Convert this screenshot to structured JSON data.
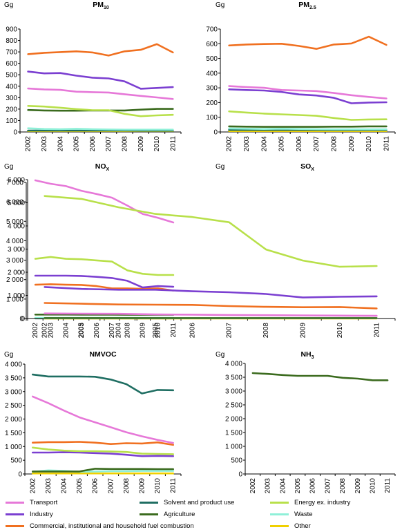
{
  "colors": {
    "Transport": "#e678d8",
    "Industry": "#7b3fd1",
    "Commercial, institutional and household fuel combustion": "#f07020",
    "Solvent and product use": "#1f6e62",
    "Agriculture": "#3b6b1e",
    "Other": "#f0d000",
    "Energy ex. industry": "#b8e04a",
    "Waste": "#8ff0d8"
  },
  "legend": [
    "Transport",
    "Solvent and product use",
    "Energy ex. industry",
    "Industry",
    "Agriculture",
    "Waste",
    "Commercial, institutional and household fuel combustion",
    "Other"
  ],
  "chart_data": [
    {
      "type": "line",
      "title": "PM",
      "title_sub": "10",
      "ylabel": "Gg",
      "ylim": [
        0,
        900
      ],
      "ytick_step": 100,
      "yticks": [
        "0",
        "100",
        "200",
        "300",
        "400",
        "500",
        "600",
        "700",
        "800",
        "900"
      ],
      "categories": [
        "2002",
        "2003",
        "2004",
        "2005",
        "2006",
        "2007",
        "2008",
        "2009",
        "2010",
        "2011"
      ],
      "series": [
        {
          "name": "Transport",
          "values": [
            380,
            372,
            368,
            352,
            348,
            345,
            330,
            315,
            302,
            288
          ]
        },
        {
          "name": "Industry",
          "values": [
            528,
            512,
            515,
            492,
            475,
            468,
            442,
            378,
            385,
            392
          ]
        },
        {
          "name": "Commercial, institutional and household fuel combustion",
          "values": [
            680,
            692,
            698,
            705,
            695,
            668,
            705,
            718,
            768,
            695
          ]
        },
        {
          "name": "Energy ex. industry",
          "values": [
            228,
            222,
            212,
            200,
            190,
            190,
            158,
            138,
            145,
            150
          ]
        },
        {
          "name": "Agriculture",
          "values": [
            192,
            188,
            186,
            186,
            188,
            188,
            188,
            195,
            202,
            202
          ]
        },
        {
          "name": "Waste",
          "values": [
            32,
            26,
            24,
            28,
            24,
            22,
            20,
            20,
            20,
            20
          ]
        },
        {
          "name": "Solvent and product use",
          "values": [
            12,
            12,
            12,
            12,
            12,
            12,
            12,
            11,
            11,
            11
          ]
        },
        {
          "name": "Other",
          "values": [
            8,
            8,
            8,
            8,
            8,
            8,
            8,
            8,
            8,
            8
          ]
        }
      ]
    },
    {
      "type": "line",
      "title": "PM",
      "title_sub": "2.5",
      "ylabel": "Gg",
      "ylim": [
        0,
        700
      ],
      "ytick_step": 100,
      "yticks": [
        "0",
        "100",
        "200",
        "300",
        "400",
        "500",
        "600",
        "700"
      ],
      "categories": [
        "2002",
        "2003",
        "2004",
        "2005",
        "2006",
        "2007",
        "2008",
        "2009",
        "2010",
        "2011"
      ],
      "series": [
        {
          "name": "Transport",
          "values": [
            312,
            305,
            300,
            285,
            282,
            278,
            265,
            250,
            238,
            228
          ]
        },
        {
          "name": "Industry",
          "values": [
            290,
            285,
            282,
            272,
            255,
            248,
            232,
            195,
            200,
            202
          ]
        },
        {
          "name": "Commercial, institutional and household fuel combustion",
          "values": [
            588,
            595,
            598,
            600,
            585,
            565,
            595,
            602,
            648,
            592
          ]
        },
        {
          "name": "Energy ex. industry",
          "values": [
            140,
            132,
            125,
            120,
            115,
            110,
            95,
            82,
            85,
            86
          ]
        },
        {
          "name": "Agriculture",
          "values": [
            38,
            36,
            35,
            35,
            35,
            35,
            36,
            36,
            38,
            38
          ]
        },
        {
          "name": "Waste",
          "values": [
            24,
            22,
            20,
            22,
            20,
            19,
            18,
            18,
            18,
            18
          ]
        },
        {
          "name": "Solvent and product use",
          "values": [
            14,
            14,
            14,
            14,
            14,
            14,
            13,
            13,
            13,
            13
          ]
        },
        {
          "name": "Other",
          "values": [
            6,
            6,
            6,
            6,
            6,
            6,
            6,
            6,
            6,
            6
          ]
        }
      ]
    },
    {
      "type": "line",
      "title": "NO",
      "title_sub": "X",
      "ylabel": "Gg",
      "ylim": [
        0,
        6000
      ],
      "ytick_step": 1000,
      "yticks": [
        "0",
        "1 000",
        "2 000",
        "3 000",
        "4 000",
        "5 000",
        "6 000"
      ],
      "categories": [
        "2002",
        "2003",
        "2004",
        "2005",
        "2006",
        "2007",
        "2008",
        "2009",
        "2010",
        "2011"
      ],
      "series": [
        {
          "name": "Transport",
          "values": [
            5970,
            5820,
            5720,
            5520,
            5380,
            5220,
            4880,
            4520,
            4350,
            4150
          ]
        },
        {
          "name": "Energy ex. industry",
          "values": [
            2580,
            2660,
            2580,
            2560,
            2510,
            2460,
            2080,
            1930,
            1880,
            1880
          ]
        },
        {
          "name": "Industry",
          "values": [
            1850,
            1850,
            1850,
            1840,
            1800,
            1750,
            1630,
            1340,
            1400,
            1370
          ]
        },
        {
          "name": "Commercial, institutional and household fuel combustion",
          "values": [
            1460,
            1480,
            1460,
            1450,
            1400,
            1300,
            1300,
            1280,
            1300,
            1210
          ]
        },
        {
          "name": "Agriculture",
          "values": [
            170,
            170,
            170,
            165,
            165,
            165,
            160,
            160,
            160,
            160
          ]
        },
        {
          "name": "Waste",
          "values": [
            30,
            30,
            30,
            30,
            30,
            30,
            30,
            30,
            30,
            30
          ]
        },
        {
          "name": "Other",
          "values": [
            20,
            20,
            20,
            20,
            20,
            20,
            20,
            20,
            20,
            20
          ]
        },
        {
          "name": "Solvent and product use",
          "values": [
            5,
            5,
            5,
            5,
            5,
            5,
            5,
            5,
            5,
            5
          ]
        }
      ]
    },
    {
      "type": "line",
      "title": "SO",
      "title_sub": "X",
      "ylabel": "Gg",
      "ylim": [
        0,
        7000
      ],
      "ytick_step": 1000,
      "yticks": [
        "0",
        "1 000",
        "2 000",
        "3 000",
        "4 000",
        "5 000",
        "6 000",
        "7 000"
      ],
      "categories": [
        "2002",
        "2003",
        "2004",
        "2005",
        "2006",
        "2007",
        "2008",
        "2009",
        "2010",
        "2011"
      ],
      "series": [
        {
          "name": "Energy ex. industry",
          "values": [
            6300,
            6150,
            5720,
            5380,
            5220,
            4950,
            3550,
            2980,
            2660,
            2700
          ]
        },
        {
          "name": "Industry",
          "values": [
            1620,
            1520,
            1480,
            1480,
            1400,
            1350,
            1260,
            1080,
            1120,
            1140
          ]
        },
        {
          "name": "Commercial, institutional and household fuel combustion",
          "values": [
            800,
            760,
            720,
            710,
            700,
            640,
            600,
            580,
            590,
            520
          ]
        },
        {
          "name": "Transport",
          "values": [
            260,
            250,
            240,
            210,
            200,
            180,
            170,
            160,
            150,
            140
          ]
        },
        {
          "name": "Agriculture",
          "values": [
            20,
            20,
            20,
            20,
            20,
            20,
            20,
            20,
            20,
            20
          ]
        },
        {
          "name": "Waste",
          "values": [
            10,
            10,
            10,
            10,
            10,
            10,
            10,
            10,
            10,
            10
          ]
        },
        {
          "name": "Other",
          "values": [
            5,
            5,
            5,
            5,
            5,
            5,
            5,
            5,
            5,
            5
          ]
        }
      ]
    },
    {
      "type": "line",
      "title": "NMVOC",
      "title_sub": "",
      "ylabel": "Gg",
      "ylim": [
        0,
        4000
      ],
      "ytick_step": 500,
      "yticks": [
        "0",
        "500",
        "1 000",
        "1 500",
        "2 000",
        "2 500",
        "3 000",
        "3 500",
        "4 000"
      ],
      "categories": [
        "2002",
        "2003",
        "2004",
        "2005",
        "2006",
        "2007",
        "2008",
        "2009",
        "2010",
        "2011"
      ],
      "series": [
        {
          "name": "Solvent and product use",
          "values": [
            3620,
            3550,
            3550,
            3550,
            3540,
            3440,
            3270,
            2930,
            3060,
            3050
          ]
        },
        {
          "name": "Transport",
          "values": [
            2820,
            2580,
            2310,
            2060,
            1880,
            1700,
            1520,
            1370,
            1240,
            1130
          ]
        },
        {
          "name": "Commercial, institutional and household fuel combustion",
          "values": [
            1140,
            1160,
            1160,
            1170,
            1140,
            1090,
            1120,
            1110,
            1150,
            1060
          ]
        },
        {
          "name": "Energy ex. industry",
          "values": [
            960,
            890,
            850,
            830,
            830,
            820,
            800,
            740,
            730,
            720
          ]
        },
        {
          "name": "Industry",
          "values": [
            780,
            780,
            790,
            780,
            760,
            740,
            700,
            650,
            660,
            650
          ]
        },
        {
          "name": "Agriculture",
          "values": [
            90,
            90,
            90,
            90,
            190,
            180,
            180,
            180,
            175,
            175
          ]
        },
        {
          "name": "Waste",
          "values": [
            80,
            130,
            110,
            80,
            90,
            100,
            100,
            110,
            110,
            110
          ]
        },
        {
          "name": "Other",
          "values": [
            20,
            20,
            20,
            20,
            20,
            20,
            20,
            20,
            20,
            20
          ]
        }
      ]
    },
    {
      "type": "line",
      "title": "NH",
      "title_sub": "3",
      "ylabel": "Gg",
      "ylim": [
        0,
        4000
      ],
      "ytick_step": 500,
      "yticks": [
        "0",
        "500",
        "1 000",
        "1 500",
        "2 000",
        "2 500",
        "3 000",
        "3 500",
        "4 000"
      ],
      "categories": [
        "2002",
        "2003",
        "2004",
        "2005",
        "2006",
        "2007",
        "2008",
        "2009",
        "2010",
        "2011"
      ],
      "series": [
        {
          "name": "Agriculture",
          "values": [
            3650,
            3620,
            3580,
            3550,
            3550,
            3550,
            3480,
            3450,
            3390,
            3390
          ]
        }
      ]
    }
  ]
}
